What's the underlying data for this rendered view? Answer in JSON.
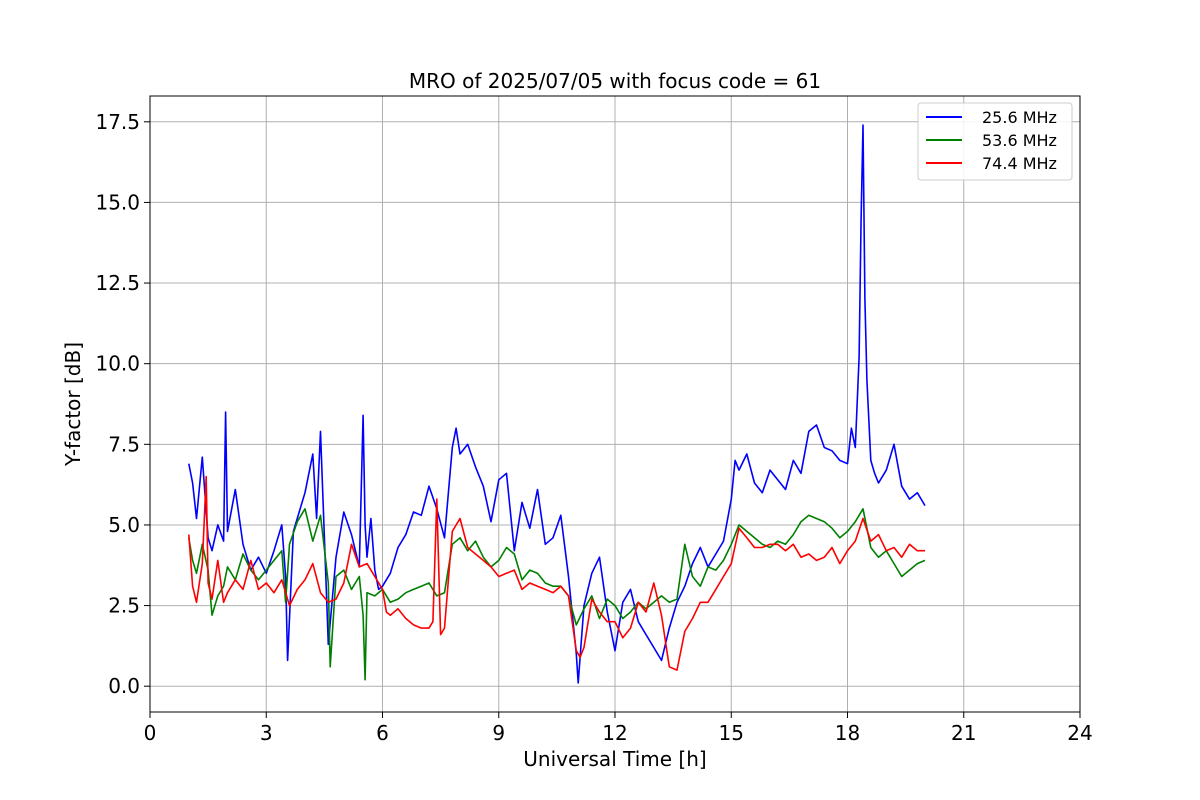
{
  "chart_data": {
    "type": "line",
    "title": "MRO of 2025/07/05 with focus code = 61",
    "xlabel": "Universal Time [h]",
    "ylabel": "Y-factor [dB]",
    "xlim": [
      0,
      24
    ],
    "ylim": [
      -0.8,
      18.3
    ],
    "xticks": [
      0,
      3,
      6,
      9,
      12,
      15,
      18,
      21,
      24
    ],
    "yticks": [
      0.0,
      2.5,
      5.0,
      7.5,
      10.0,
      12.5,
      15.0,
      17.5
    ],
    "xtick_labels": [
      "0",
      "3",
      "6",
      "9",
      "12",
      "15",
      "18",
      "21",
      "24"
    ],
    "ytick_labels": [
      "0.0",
      "2.5",
      "5.0",
      "7.5",
      "10.0",
      "12.5",
      "15.0",
      "17.5"
    ],
    "grid": true,
    "legend_position": "top-right",
    "series": [
      {
        "name": "25.6 MHz",
        "color": "#0000ff",
        "x": [
          1.0,
          1.1,
          1.2,
          1.35,
          1.5,
          1.6,
          1.75,
          1.9,
          1.95,
          2.0,
          2.2,
          2.4,
          2.6,
          2.8,
          3.0,
          3.2,
          3.4,
          3.5,
          3.55,
          3.7,
          3.9,
          4.0,
          4.2,
          4.3,
          4.4,
          4.55,
          4.6,
          4.8,
          5.0,
          5.2,
          5.4,
          5.5,
          5.55,
          5.6,
          5.7,
          5.8,
          5.9,
          6.0,
          6.2,
          6.4,
          6.6,
          6.8,
          7.0,
          7.2,
          7.4,
          7.6,
          7.8,
          7.9,
          8.0,
          8.2,
          8.4,
          8.6,
          8.8,
          9.0,
          9.2,
          9.4,
          9.6,
          9.8,
          10.0,
          10.2,
          10.4,
          10.6,
          10.8,
          11.0,
          11.05,
          11.1,
          11.2,
          11.4,
          11.6,
          11.8,
          12.0,
          12.2,
          12.4,
          12.6,
          12.8,
          13.0,
          13.2,
          13.4,
          13.6,
          13.8,
          14.0,
          14.2,
          14.4,
          14.6,
          14.8,
          15.0,
          15.1,
          15.2,
          15.4,
          15.6,
          15.8,
          16.0,
          16.2,
          16.4,
          16.6,
          16.8,
          17.0,
          17.2,
          17.4,
          17.6,
          17.8,
          18.0,
          18.1,
          18.2,
          18.3,
          18.35,
          18.4,
          18.45,
          18.5,
          18.6,
          18.7,
          18.8,
          19.0,
          19.2,
          19.4,
          19.6,
          19.8,
          20.0
        ],
        "y": [
          6.9,
          6.3,
          5.2,
          7.1,
          4.6,
          4.2,
          5.0,
          4.5,
          8.5,
          4.8,
          6.1,
          4.4,
          3.6,
          4.0,
          3.5,
          4.2,
          5.0,
          3.4,
          0.8,
          4.8,
          5.6,
          6.0,
          7.2,
          5.2,
          7.9,
          3.0,
          1.3,
          4.0,
          5.4,
          4.7,
          3.7,
          8.4,
          5.0,
          4.0,
          5.2,
          3.6,
          3.0,
          3.1,
          3.5,
          4.3,
          4.7,
          5.4,
          5.3,
          6.2,
          5.5,
          4.6,
          7.4,
          8.0,
          7.2,
          7.5,
          6.8,
          6.2,
          5.1,
          6.4,
          6.6,
          4.2,
          5.7,
          4.9,
          6.1,
          4.4,
          4.6,
          5.3,
          3.4,
          1.0,
          0.1,
          0.9,
          2.5,
          3.5,
          4.0,
          2.3,
          1.1,
          2.6,
          3.0,
          2.0,
          1.6,
          1.2,
          0.8,
          1.8,
          2.6,
          3.1,
          3.8,
          4.3,
          3.7,
          4.1,
          4.5,
          5.8,
          7.0,
          6.7,
          7.2,
          6.3,
          6.0,
          6.7,
          6.4,
          6.1,
          7.0,
          6.6,
          7.9,
          8.1,
          7.4,
          7.3,
          7.0,
          6.9,
          8.0,
          7.4,
          10.2,
          14.5,
          17.4,
          12.0,
          9.5,
          7.0,
          6.6,
          6.3,
          6.7,
          7.5,
          6.2,
          5.8,
          6.0,
          5.6
        ]
      },
      {
        "name": "53.6 MHz",
        "color": "#008000",
        "x": [
          1.0,
          1.1,
          1.2,
          1.35,
          1.5,
          1.6,
          1.75,
          1.9,
          2.0,
          2.2,
          2.4,
          2.6,
          2.8,
          3.0,
          3.2,
          3.4,
          3.5,
          3.6,
          3.8,
          4.0,
          4.2,
          4.4,
          4.6,
          4.65,
          4.8,
          5.0,
          5.2,
          5.4,
          5.5,
          5.55,
          5.6,
          5.8,
          6.0,
          6.2,
          6.4,
          6.6,
          6.8,
          7.0,
          7.2,
          7.4,
          7.6,
          7.8,
          8.0,
          8.2,
          8.4,
          8.6,
          8.8,
          9.0,
          9.2,
          9.4,
          9.6,
          9.8,
          10.0,
          10.2,
          10.4,
          10.6,
          10.8,
          11.0,
          11.2,
          11.4,
          11.6,
          11.8,
          12.0,
          12.2,
          12.4,
          12.6,
          12.8,
          13.0,
          13.2,
          13.4,
          13.6,
          13.8,
          14.0,
          14.2,
          14.4,
          14.6,
          14.8,
          15.0,
          15.2,
          15.4,
          15.6,
          15.8,
          16.0,
          16.2,
          16.4,
          16.6,
          16.8,
          17.0,
          17.2,
          17.4,
          17.6,
          17.8,
          18.0,
          18.2,
          18.4,
          18.6,
          18.8,
          19.0,
          19.2,
          19.4,
          19.6,
          19.8,
          20.0
        ],
        "y": [
          4.6,
          3.9,
          3.5,
          4.4,
          3.6,
          2.2,
          2.8,
          3.1,
          3.7,
          3.3,
          4.1,
          3.6,
          3.3,
          3.6,
          3.9,
          4.2,
          2.6,
          4.4,
          5.1,
          5.5,
          4.5,
          5.3,
          3.2,
          0.6,
          3.4,
          3.6,
          3.0,
          3.4,
          2.2,
          0.2,
          2.9,
          2.8,
          3.0,
          2.6,
          2.7,
          2.9,
          3.0,
          3.1,
          3.2,
          2.8,
          2.9,
          4.4,
          4.6,
          4.2,
          4.5,
          4.0,
          3.7,
          3.9,
          4.3,
          4.1,
          3.3,
          3.6,
          3.5,
          3.2,
          3.1,
          3.1,
          2.8,
          1.9,
          2.4,
          2.8,
          2.1,
          2.7,
          2.5,
          2.1,
          2.3,
          2.6,
          2.4,
          2.6,
          2.8,
          2.6,
          2.7,
          4.4,
          3.4,
          3.1,
          3.7,
          3.6,
          3.9,
          4.4,
          5.0,
          4.8,
          4.6,
          4.4,
          4.3,
          4.5,
          4.4,
          4.7,
          5.1,
          5.3,
          5.2,
          5.1,
          4.9,
          4.6,
          4.8,
          5.1,
          5.5,
          4.3,
          4.0,
          4.2,
          3.8,
          3.4,
          3.6,
          3.8,
          3.9
        ]
      },
      {
        "name": "74.4 MHz",
        "color": "#ff0000",
        "x": [
          1.0,
          1.1,
          1.2,
          1.35,
          1.45,
          1.5,
          1.6,
          1.75,
          1.9,
          2.0,
          2.2,
          2.4,
          2.6,
          2.8,
          3.0,
          3.2,
          3.4,
          3.6,
          3.8,
          4.0,
          4.2,
          4.4,
          4.6,
          4.8,
          5.0,
          5.2,
          5.4,
          5.6,
          5.8,
          6.0,
          6.1,
          6.2,
          6.4,
          6.6,
          6.8,
          7.0,
          7.2,
          7.3,
          7.4,
          7.5,
          7.6,
          7.8,
          8.0,
          8.2,
          8.4,
          8.6,
          8.8,
          9.0,
          9.2,
          9.4,
          9.6,
          9.8,
          10.0,
          10.2,
          10.4,
          10.6,
          10.8,
          11.0,
          11.1,
          11.2,
          11.4,
          11.6,
          11.8,
          12.0,
          12.2,
          12.4,
          12.6,
          12.8,
          13.0,
          13.2,
          13.4,
          13.6,
          13.8,
          14.0,
          14.2,
          14.4,
          14.6,
          14.8,
          15.0,
          15.2,
          15.4,
          15.6,
          15.8,
          16.0,
          16.2,
          16.4,
          16.6,
          16.8,
          17.0,
          17.2,
          17.4,
          17.6,
          17.8,
          18.0,
          18.2,
          18.4,
          18.6,
          18.8,
          19.0,
          19.2,
          19.4,
          19.6,
          19.8,
          20.0
        ],
        "y": [
          4.7,
          3.1,
          2.6,
          3.8,
          6.5,
          3.2,
          2.7,
          3.9,
          2.6,
          2.9,
          3.3,
          3.0,
          3.9,
          3.0,
          3.2,
          2.9,
          3.3,
          2.5,
          3.0,
          3.3,
          3.8,
          2.9,
          2.6,
          2.7,
          3.2,
          4.4,
          3.7,
          3.8,
          3.4,
          3.0,
          2.3,
          2.2,
          2.4,
          2.1,
          1.9,
          1.8,
          1.8,
          2.0,
          5.8,
          1.6,
          1.8,
          4.8,
          5.2,
          4.3,
          4.1,
          3.9,
          3.7,
          3.4,
          3.5,
          3.6,
          3.0,
          3.2,
          3.1,
          3.0,
          2.9,
          3.1,
          2.8,
          1.1,
          0.9,
          1.2,
          2.7,
          2.3,
          2.0,
          2.0,
          1.5,
          1.8,
          2.6,
          2.3,
          3.2,
          2.2,
          0.6,
          0.5,
          1.7,
          2.1,
          2.6,
          2.6,
          3.0,
          3.4,
          3.8,
          4.9,
          4.6,
          4.3,
          4.3,
          4.4,
          4.4,
          4.2,
          4.4,
          4.0,
          4.1,
          3.9,
          4.0,
          4.3,
          3.8,
          4.2,
          4.5,
          5.2,
          4.5,
          4.7,
          4.2,
          4.3,
          4.0,
          4.4,
          4.2,
          4.2
        ]
      }
    ]
  }
}
